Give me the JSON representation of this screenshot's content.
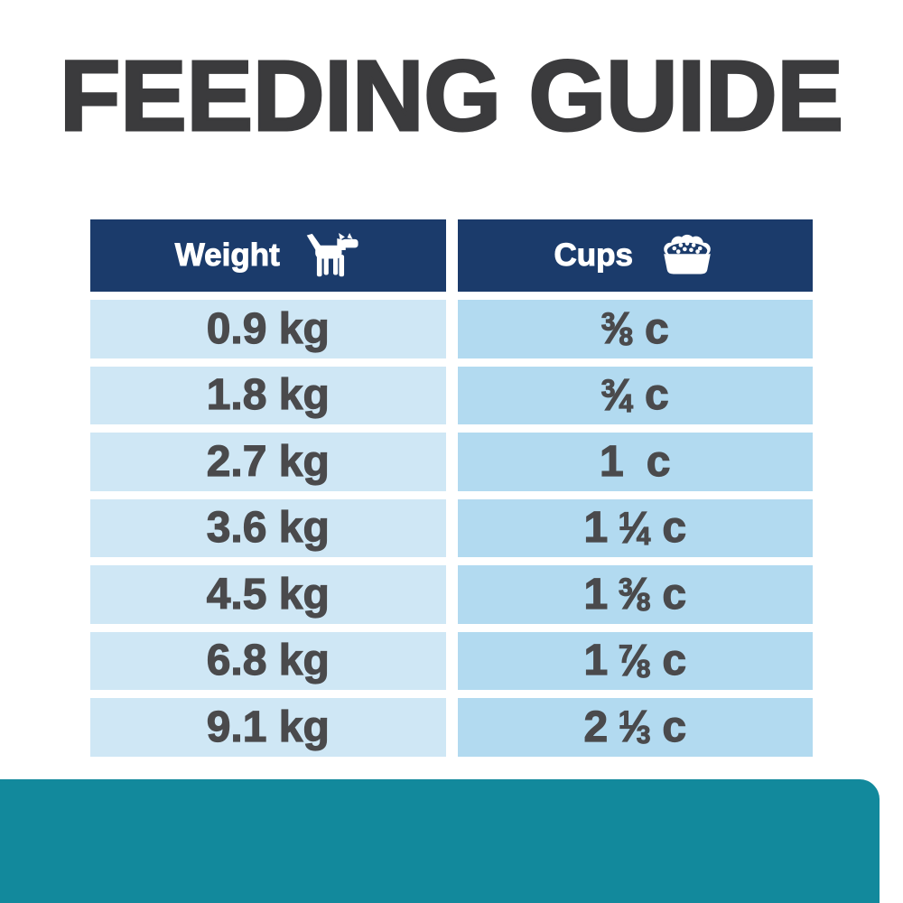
{
  "page": {
    "title": "FEEDING GUIDE"
  },
  "table": {
    "columns": [
      {
        "label": "Weight",
        "icon": "dog-icon"
      },
      {
        "label": "Cups",
        "icon": "food-bowl-icon"
      }
    ],
    "rows": [
      {
        "weight": "0.9 kg",
        "cups": {
          "whole": "",
          "num": "3",
          "den": "8",
          "unit": "c"
        }
      },
      {
        "weight": "1.8 kg",
        "cups": {
          "whole": "",
          "num": "3",
          "den": "4",
          "unit": "c"
        }
      },
      {
        "weight": "2.7 kg",
        "cups": {
          "whole": "1",
          "num": "",
          "den": "",
          "unit": "c"
        }
      },
      {
        "weight": "3.6 kg",
        "cups": {
          "whole": "1",
          "num": "1",
          "den": "4",
          "unit": "c"
        }
      },
      {
        "weight": "4.5 kg",
        "cups": {
          "whole": "1",
          "num": "3",
          "den": "8",
          "unit": "c"
        }
      },
      {
        "weight": "6.8 kg",
        "cups": {
          "whole": "1",
          "num": "7",
          "den": "8",
          "unit": "c"
        }
      },
      {
        "weight": "9.1 kg",
        "cups": {
          "whole": "2",
          "num": "1",
          "den": "3",
          "unit": "c"
        }
      }
    ]
  },
  "chart_data": {
    "type": "table",
    "title": "FEEDING GUIDE",
    "columns": [
      "Weight",
      "Cups"
    ],
    "rows": [
      [
        "0.9 kg",
        "3/8 c"
      ],
      [
        "1.8 kg",
        "3/4 c"
      ],
      [
        "2.7 kg",
        "1 c"
      ],
      [
        "3.6 kg",
        "1 1/4 c"
      ],
      [
        "4.5 kg",
        "1 3/8 c"
      ],
      [
        "6.8 kg",
        "1 7/8 c"
      ],
      [
        "9.1 kg",
        "2 1/3 c"
      ]
    ]
  },
  "colors": {
    "header_bg": "#1b3b6b",
    "weight_cell_bg": "#cfe7f5",
    "cups_cell_bg": "#b2daf0",
    "title_text": "#3b3b3d",
    "cell_text": "#4a4a4c",
    "footer_band": "#12899c"
  }
}
